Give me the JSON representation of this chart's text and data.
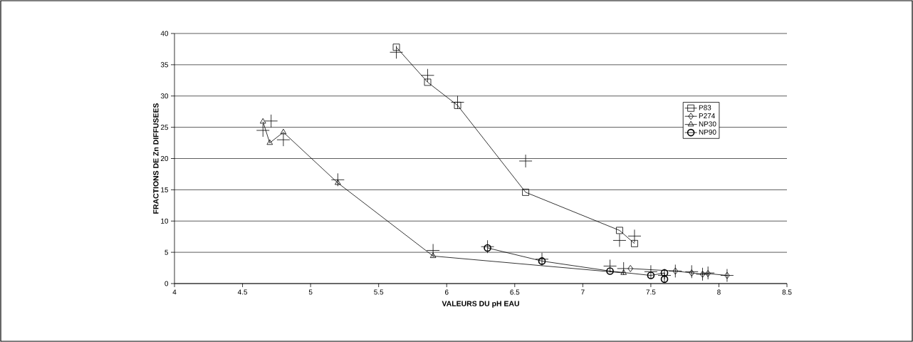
{
  "chart_data": {
    "type": "line",
    "xlabel": "VALEURS DU pH EAU",
    "ylabel": "FRACTIONS DE Zn DIFFUSEES",
    "xlim": [
      4,
      8.5
    ],
    "xticks": [
      4,
      4.5,
      5,
      5.5,
      6,
      6.5,
      7,
      7.5,
      8,
      8.5
    ],
    "ylim": [
      0,
      40
    ],
    "yticks": [
      0,
      5,
      10,
      15,
      20,
      25,
      30,
      35,
      40
    ],
    "grid": "y",
    "legend": "right",
    "line_style": "solid",
    "series": [
      {
        "name": "P83",
        "color": "#000000",
        "marker": "square",
        "x": [
          5.63,
          5.86,
          6.08,
          6.58,
          7.27,
          7.38
        ],
        "values": [
          37.8,
          32.2,
          28.5,
          14.6,
          8.5,
          6.4
        ]
      },
      {
        "name": "P274",
        "color": "#000000",
        "marker": "diamond",
        "x": [
          7.35,
          7.68,
          7.8,
          7.88,
          7.92,
          8.06
        ],
        "values": [
          2.4,
          2.0,
          1.7,
          1.5,
          1.6,
          1.3
        ]
      },
      {
        "name": "NP30",
        "color": "#000000",
        "marker": "triangle",
        "x": [
          4.65,
          4.7,
          4.8,
          5.2,
          5.9,
          7.3
        ],
        "values": [
          25.9,
          22.5,
          24.2,
          16.1,
          4.4,
          1.7
        ]
      },
      {
        "name": "NP90",
        "color": "#000000",
        "marker": "circle",
        "x": [
          6.3,
          6.7,
          7.2,
          7.5,
          7.6,
          7.6
        ],
        "values": [
          5.7,
          3.6,
          2.0,
          1.3,
          1.7,
          0.7
        ]
      },
      {
        "type": "scatter",
        "color": "#000000",
        "marker": "cross",
        "x": [
          5.63,
          5.86,
          6.08,
          6.58,
          7.27,
          7.38,
          4.71,
          4.65,
          4.8,
          5.2,
          5.9,
          6.3,
          6.7,
          7.2,
          7.3,
          7.5,
          7.6,
          7.68,
          7.8,
          7.88,
          7.92,
          8.06
        ],
        "values": [
          37.0,
          33.3,
          29.0,
          19.6,
          6.9,
          7.6,
          26.0,
          24.5,
          23.0,
          16.6,
          5.3,
          5.9,
          3.9,
          2.8,
          2.4,
          1.9,
          1.3,
          2.0,
          1.9,
          1.5,
          1.7,
          1.3
        ]
      }
    ]
  }
}
